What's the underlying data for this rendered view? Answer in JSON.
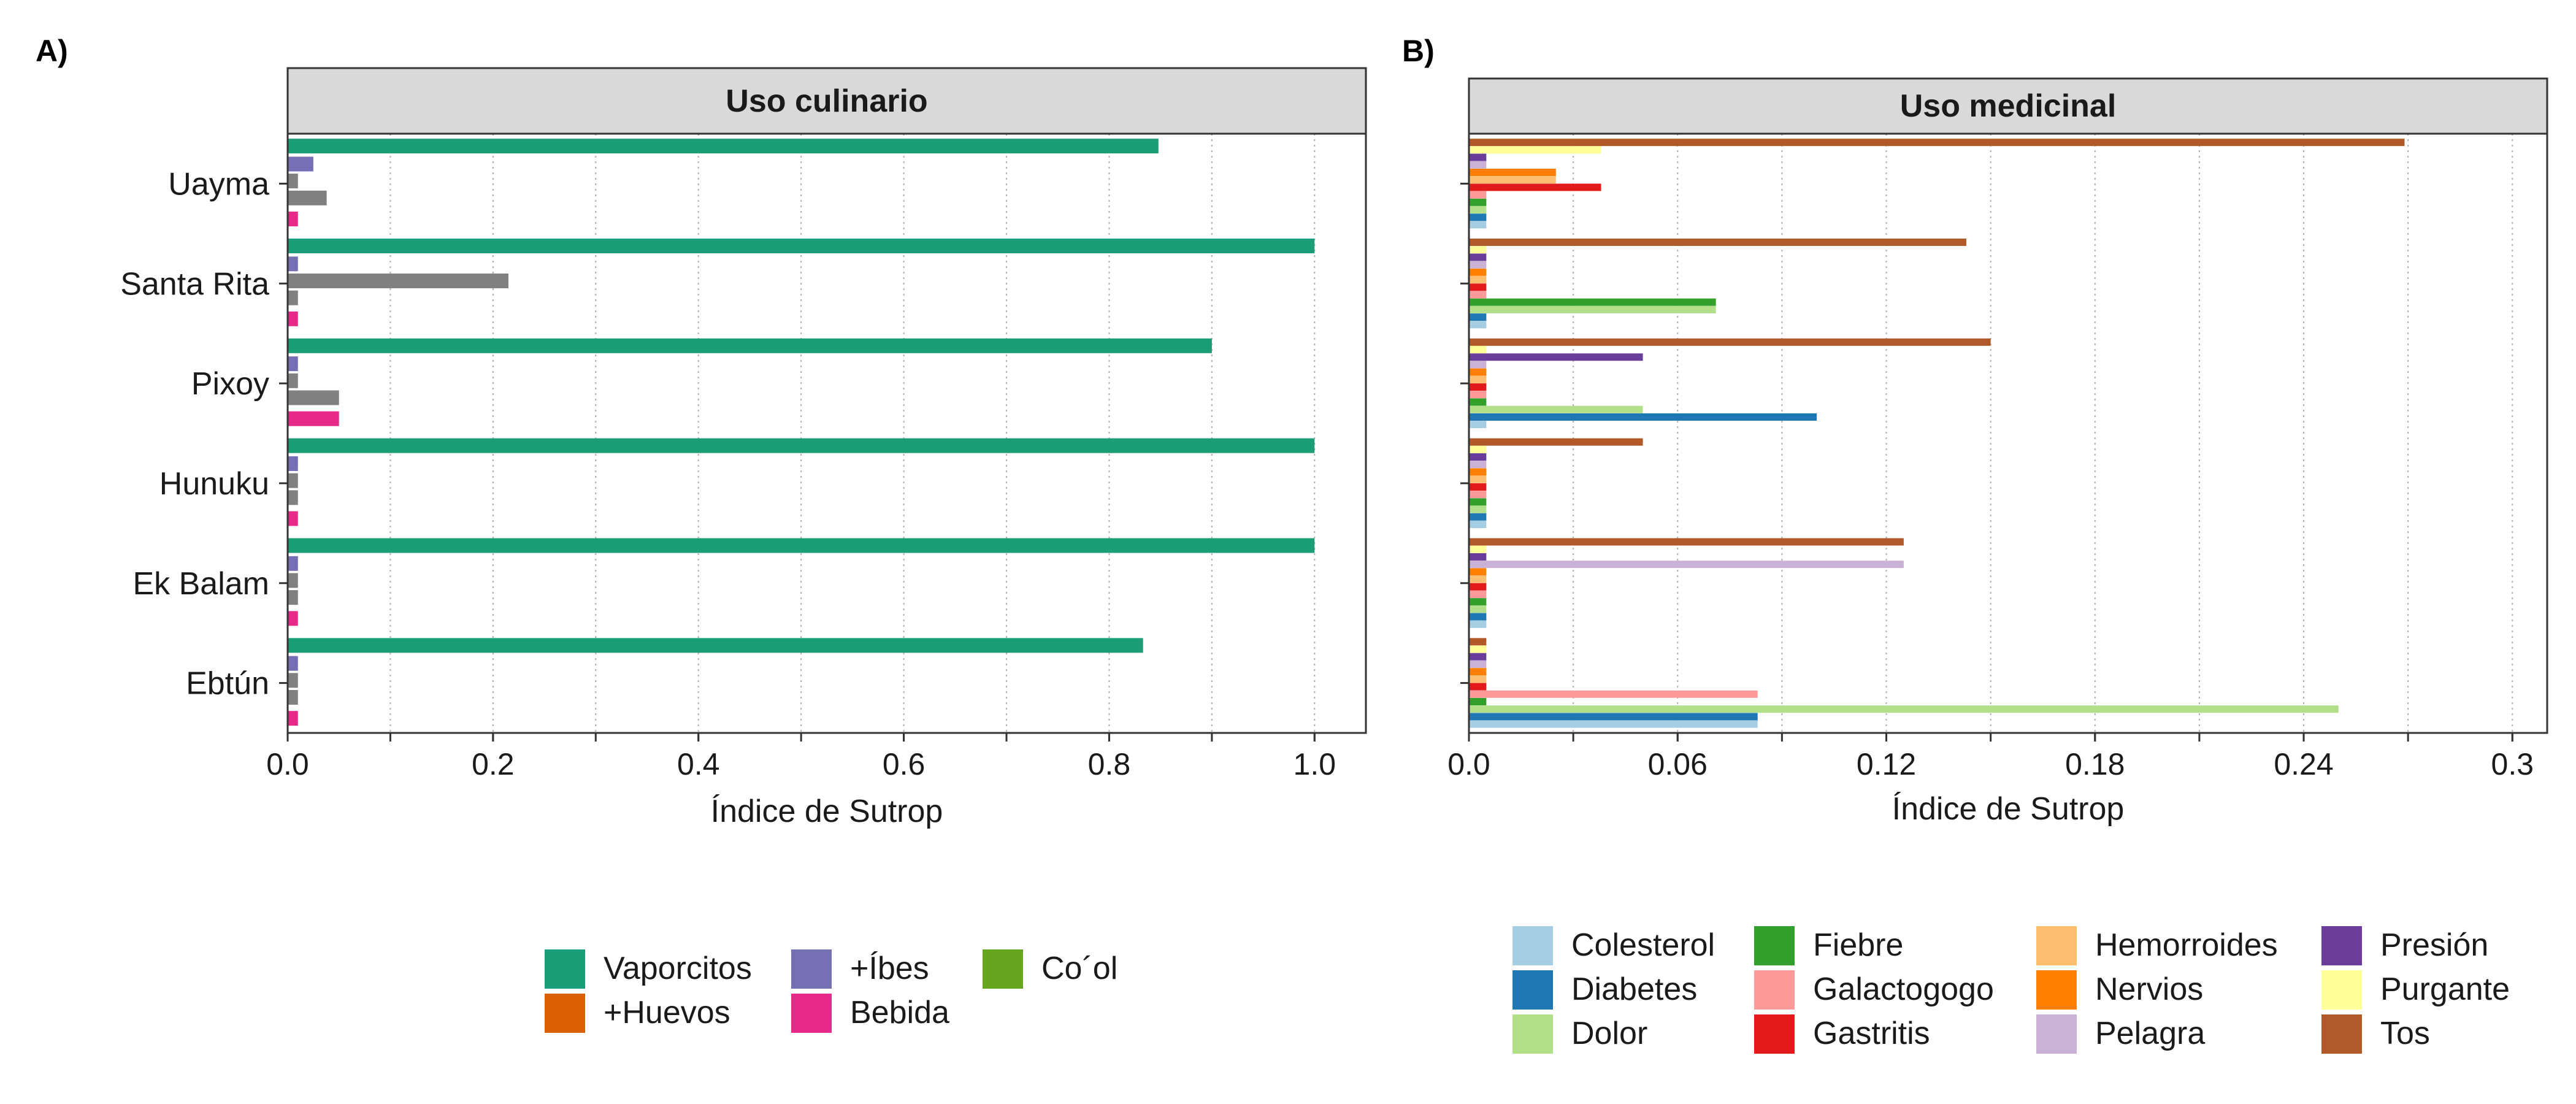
{
  "panel_labels": {
    "a": "A)",
    "b": "B)"
  },
  "chart_data": [
    {
      "type": "bar",
      "orientation": "horizontal",
      "title": "Uso culinario",
      "xlabel": "Índice de Sutrop",
      "ylabel": "",
      "xlim": [
        0,
        1.05
      ],
      "xticks": [
        "0.0",
        "0.2",
        "0.4",
        "0.6",
        "0.8",
        "1.0"
      ],
      "xtick_values": [
        0,
        0.2,
        0.4,
        0.6,
        0.8,
        1.0
      ],
      "grid": "vertical dotted",
      "legend_position": "bottom",
      "categories": [
        "Uayma",
        "Santa Rita",
        "Pixoy",
        "Hunuku",
        "Ek Balam",
        "Ebtún"
      ],
      "series": [
        {
          "name": "Vaporcitos",
          "color": "#1B9E77",
          "values": [
            0.848,
            1.0,
            0.9,
            1.0,
            1.0,
            0.833
          ]
        },
        {
          "name": "+Huevos",
          "color": "#D95F02",
          "values": [
            0,
            0,
            0,
            0,
            0,
            0
          ]
        },
        {
          "name": "+Íbes",
          "color": "#7570B3",
          "values": [
            0.025,
            0.01,
            0.01,
            0.01,
            0.01,
            0.01
          ]
        },
        {
          "name": "Bebida",
          "color": "#E7298A",
          "values": [
            0.01,
            0.01,
            0.05,
            0.01,
            0.01,
            0.01
          ]
        },
        {
          "name": "Co´ol",
          "color": "#66A61E",
          "values": [
            0,
            0,
            0,
            0,
            0,
            0
          ]
        }
      ],
      "extra_grey_bars": {
        "color": "#808080",
        "values": [
          [
            0.01,
            0.038
          ],
          [
            0.215,
            0.01
          ],
          [
            0.01,
            0.05
          ],
          [
            0.01,
            0.01
          ],
          [
            0.01,
            0.01
          ],
          [
            0.01,
            0.01
          ]
        ]
      }
    },
    {
      "type": "bar",
      "orientation": "horizontal",
      "title": "Uso medicinal",
      "xlabel": "Índice de Sutrop",
      "ylabel": "",
      "xlim": [
        0,
        0.31
      ],
      "xticks": [
        "0.0",
        "0.06",
        "0.12",
        "0.18",
        "0.24",
        "0.3"
      ],
      "xtick_values": [
        0,
        0.06,
        0.12,
        0.18,
        0.24,
        0.3
      ],
      "grid": "vertical dotted",
      "legend_position": "bottom",
      "categories": [
        "Uayma",
        "Santa Rita",
        "Pixoy",
        "Hunuku",
        "Ek Balam",
        "Ebtún"
      ],
      "series": [
        {
          "name": "Colesterol",
          "color": "#A6CEE3",
          "values": [
            0.005,
            0.005,
            0.005,
            0.005,
            0.005,
            0.083
          ]
        },
        {
          "name": "Diabetes",
          "color": "#1F78B4",
          "values": [
            0.005,
            0.005,
            0.1,
            0.005,
            0.005,
            0.083
          ]
        },
        {
          "name": "Dolor",
          "color": "#B2DF8A",
          "values": [
            0.005,
            0.071,
            0.05,
            0.005,
            0.005,
            0.25
          ]
        },
        {
          "name": "Fiebre",
          "color": "#33A02C",
          "values": [
            0.005,
            0.071,
            0.005,
            0.005,
            0.005,
            0.005
          ]
        },
        {
          "name": "Galactogogo",
          "color": "#FB9A99",
          "values": [
            0.005,
            0.005,
            0.005,
            0.005,
            0.005,
            0.083
          ]
        },
        {
          "name": "Gastritis",
          "color": "#E31A1C",
          "values": [
            0.038,
            0.005,
            0.005,
            0.005,
            0.005,
            0.005
          ]
        },
        {
          "name": "Hemorroides",
          "color": "#FDBF6F",
          "values": [
            0.025,
            0.005,
            0.005,
            0.005,
            0.005,
            0.005
          ]
        },
        {
          "name": "Nervios",
          "color": "#FF7F00",
          "values": [
            0.025,
            0.005,
            0.005,
            0.005,
            0.005,
            0.005
          ]
        },
        {
          "name": "Pelagra",
          "color": "#CAB2D6",
          "values": [
            0.005,
            0.005,
            0.005,
            0.005,
            0.125,
            0.005
          ]
        },
        {
          "name": "Presión",
          "color": "#6A3D9A",
          "values": [
            0.005,
            0.005,
            0.05,
            0.005,
            0.005,
            0.005
          ]
        },
        {
          "name": "Purgante",
          "color": "#FFFF99",
          "values": [
            0.038,
            0.005,
            0.005,
            0.005,
            0.005,
            0.005
          ]
        },
        {
          "name": "Tos",
          "color": "#B15928",
          "values": [
            0.269,
            0.143,
            0.15,
            0.05,
            0.125,
            0.005
          ]
        }
      ]
    }
  ]
}
